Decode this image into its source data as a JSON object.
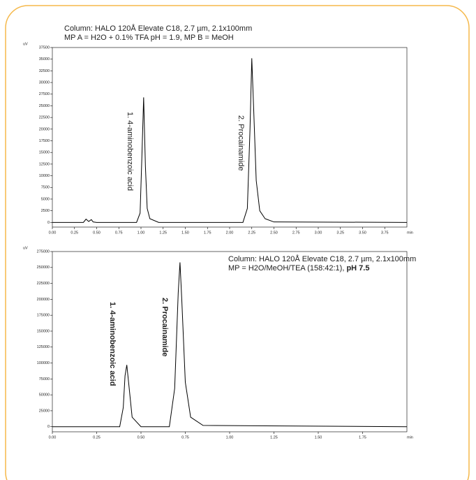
{
  "chart_data": [
    {
      "type": "line",
      "title": "Column: HALO 120Å Elevate C18, 2.7 µm, 2.1x100mm",
      "subtitle": "MP A = H2O + 0.1% TFA pH = 1.9, MP B = MeOH",
      "y_label": "uV",
      "x_label": "min",
      "annotations": [
        "1. 4-aminobenzoic acid",
        "2. Procainamide"
      ],
      "x": [
        0,
        0.35,
        0.38,
        0.41,
        0.44,
        0.46,
        0.5,
        0.95,
        0.99,
        1.01,
        1.03,
        1.05,
        1.07,
        1.1,
        1.2,
        2.15,
        2.2,
        2.23,
        2.25,
        2.27,
        2.3,
        2.34,
        2.4,
        2.5,
        4.0
      ],
      "series": [
        {
          "color": "#000000",
          "values": [
            0,
            0,
            700,
            200,
            600,
            100,
            0,
            0,
            2000,
            14000,
            26800,
            12000,
            3000,
            800,
            0,
            0,
            3000,
            20000,
            35200,
            25000,
            9000,
            2500,
            800,
            100,
            0
          ]
        }
      ],
      "xlim": [
        0,
        4
      ],
      "xticks": [
        {
          "value": 0,
          "label": "0.00"
        },
        {
          "value": 0.25,
          "label": "0.25"
        },
        {
          "value": 0.5,
          "label": "0.50"
        },
        {
          "value": 0.75,
          "label": "0.75"
        },
        {
          "value": 1,
          "label": "1.00"
        },
        {
          "value": 1.25,
          "label": "1.25"
        },
        {
          "value": 1.5,
          "label": "1.50"
        },
        {
          "value": 1.75,
          "label": "1.75"
        },
        {
          "value": 2,
          "label": "2.00"
        },
        {
          "value": 2.25,
          "label": "2.25"
        },
        {
          "value": 2.5,
          "label": "2.50"
        },
        {
          "value": 2.75,
          "label": "2.75"
        },
        {
          "value": 3,
          "label": "3.00"
        },
        {
          "value": 3.25,
          "label": "3.25"
        },
        {
          "value": 3.5,
          "label": "3.50"
        },
        {
          "value": 3.75,
          "label": "3.75"
        }
      ],
      "ylim": [
        -1000,
        37500
      ],
      "yticks": [
        0,
        2500,
        5000,
        7500,
        10000,
        12500,
        15000,
        17500,
        20000,
        22500,
        25000,
        27500,
        30000,
        32500,
        35000,
        37500
      ]
    },
    {
      "type": "line",
      "title": "Column: HALO 120Å Elevate C18, 2.7 µm, 2.1x100mm",
      "subtitle": "MP = H2O/MeOH/TEA (158:42:1), ",
      "subtitle_bold": "pH 7.5",
      "y_label": "uV",
      "x_label": "min",
      "annotations": [
        "1. 4-aminobenzoic acid",
        "2. Procainamide"
      ],
      "x": [
        0,
        0.38,
        0.4,
        0.41,
        0.42,
        0.43,
        0.45,
        0.5,
        0.66,
        0.69,
        0.71,
        0.72,
        0.73,
        0.75,
        0.78,
        0.85,
        2.0
      ],
      "series": [
        {
          "color": "#000000",
          "values": [
            0,
            0,
            30000,
            80000,
            97000,
            70000,
            15000,
            0,
            0,
            60000,
            210000,
            258000,
            200000,
            70000,
            15000,
            2000,
            0
          ]
        }
      ],
      "xlim": [
        0,
        2
      ],
      "xticks": [
        {
          "value": 0,
          "label": "0.00"
        },
        {
          "value": 0.25,
          "label": "0.25"
        },
        {
          "value": 0.5,
          "label": "0.50"
        },
        {
          "value": 0.75,
          "label": "0.75"
        },
        {
          "value": 1,
          "label": "1.00"
        },
        {
          "value": 1.25,
          "label": "1.25"
        },
        {
          "value": 1.5,
          "label": "1.50"
        },
        {
          "value": 1.75,
          "label": "1.75"
        }
      ],
      "ylim": [
        -8000,
        275000
      ],
      "yticks": [
        0,
        25000,
        50000,
        75000,
        100000,
        125000,
        150000,
        175000,
        200000,
        225000,
        250000,
        275000
      ]
    }
  ]
}
